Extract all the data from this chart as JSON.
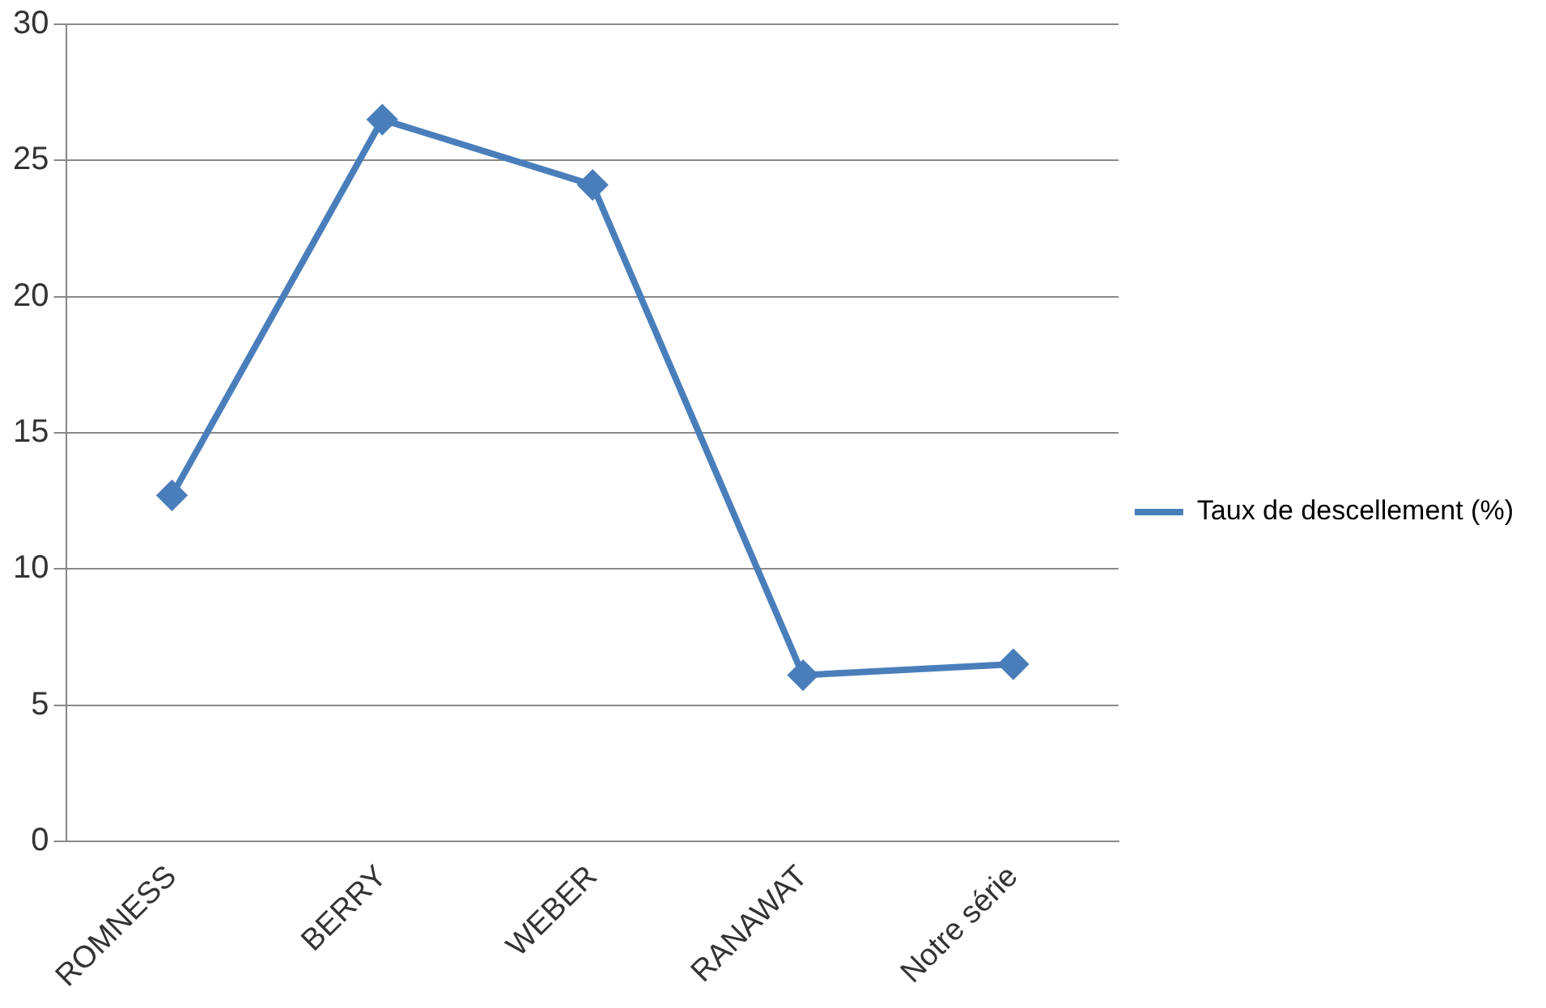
{
  "chart_data": {
    "type": "line",
    "categories": [
      "ROMNESS",
      "BERRY",
      "WEBER",
      "RANAWAT",
      "Notre série"
    ],
    "series": [
      {
        "name": "Taux de descellement (%)",
        "color": "#4a7ebb",
        "values": [
          12.7,
          26.5,
          24.1,
          6.1,
          6.5
        ]
      }
    ],
    "ylim": [
      0,
      30
    ],
    "yticks": [
      0,
      5,
      10,
      15,
      20,
      25,
      30
    ],
    "grid": "y",
    "legend": "right",
    "marker": "diamond",
    "line_style": "solid"
  }
}
